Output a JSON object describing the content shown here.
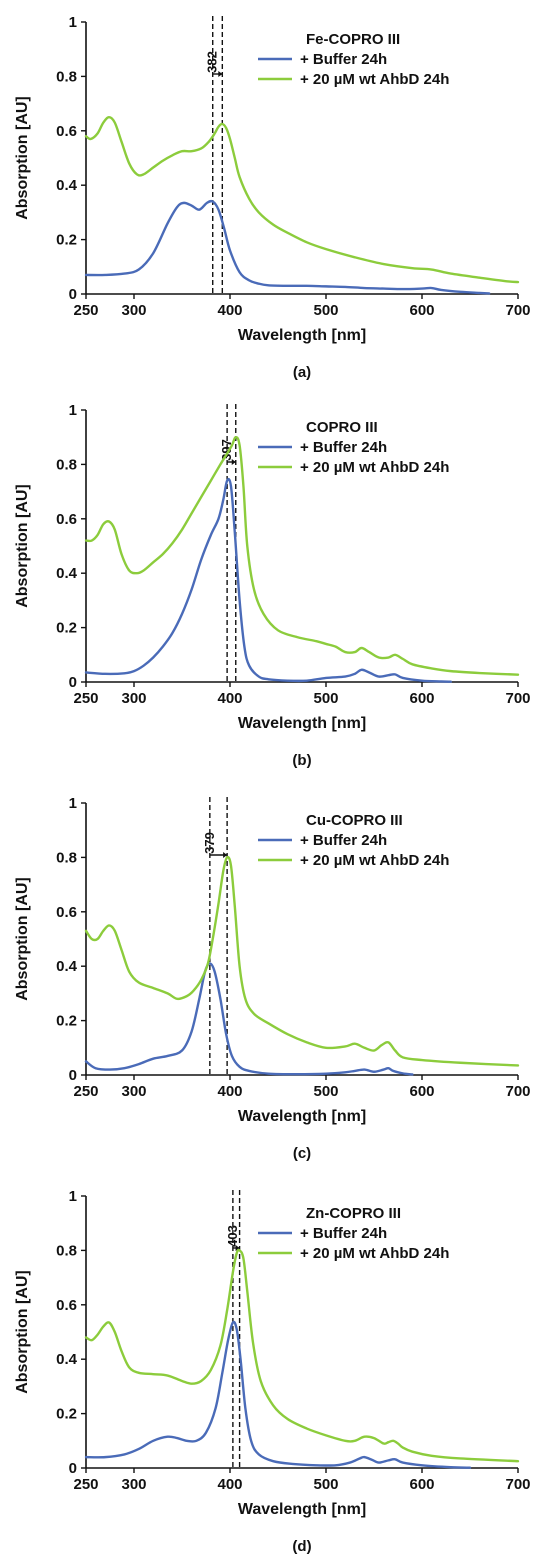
{
  "colors": {
    "buffer": "#4a6bb8",
    "ahbd": "#8ccc3c",
    "axis": "#111111",
    "marker": "#111111"
  },
  "chart_data": [
    {
      "type": "line",
      "panel_label": "(a)",
      "legend_title": "Fe-COPRO III",
      "xlabel": "Wavelength [nm]",
      "ylabel": "Absorption [AU]",
      "xlim": [
        250,
        700
      ],
      "ylim": [
        0,
        1
      ],
      "xticks": [
        "250",
        "300",
        "400",
        "500",
        "600",
        "700"
      ],
      "yticks": [
        "0",
        "0.2",
        "0.4",
        "0.6",
        "0.8",
        "1"
      ],
      "grid": false,
      "legend_position": "top-right",
      "peak_label": "382",
      "peak_lines": [
        382,
        392
      ],
      "series": [
        {
          "name": "+ Buffer 24h",
          "color": "#4a6bb8",
          "x": [
            250,
            270,
            290,
            305,
            320,
            335,
            345,
            352,
            360,
            368,
            376,
            382,
            388,
            394,
            400,
            410,
            420,
            430,
            440,
            460,
            480,
            500,
            520,
            540,
            560,
            580,
            600,
            610,
            620,
            640,
            660,
            670
          ],
          "y": [
            0.07,
            0.07,
            0.075,
            0.09,
            0.15,
            0.26,
            0.32,
            0.335,
            0.325,
            0.31,
            0.335,
            0.34,
            0.31,
            0.24,
            0.16,
            0.08,
            0.05,
            0.038,
            0.032,
            0.03,
            0.03,
            0.028,
            0.026,
            0.022,
            0.02,
            0.018,
            0.02,
            0.022,
            0.015,
            0.008,
            0.004,
            0.002
          ]
        },
        {
          "name": "+ 20 µM wt AhbD 24h",
          "color": "#8ccc3c",
          "x": [
            250,
            255,
            262,
            268,
            274,
            280,
            287,
            295,
            303,
            310,
            320,
            330,
            340,
            350,
            360,
            370,
            378,
            384,
            388,
            392,
            396,
            400,
            405,
            410,
            420,
            430,
            445,
            460,
            480,
            500,
            530,
            560,
            590,
            610,
            630,
            660,
            690,
            700
          ],
          "y": [
            0.58,
            0.57,
            0.59,
            0.63,
            0.65,
            0.63,
            0.56,
            0.48,
            0.44,
            0.44,
            0.465,
            0.49,
            0.51,
            0.525,
            0.525,
            0.535,
            0.56,
            0.59,
            0.615,
            0.625,
            0.61,
            0.57,
            0.5,
            0.43,
            0.35,
            0.3,
            0.255,
            0.225,
            0.19,
            0.165,
            0.135,
            0.11,
            0.095,
            0.09,
            0.075,
            0.06,
            0.046,
            0.044
          ]
        }
      ]
    },
    {
      "type": "line",
      "panel_label": "(b)",
      "legend_title": "COPRO III",
      "xlabel": "Wavelength [nm]",
      "ylabel": "Absorption [AU]",
      "xlim": [
        250,
        700
      ],
      "ylim": [
        0,
        1
      ],
      "xticks": [
        "250",
        "300",
        "400",
        "500",
        "600",
        "700"
      ],
      "yticks": [
        "0",
        "0.2",
        "0.4",
        "0.6",
        "0.8",
        "1"
      ],
      "grid": false,
      "legend_position": "top-right",
      "peak_label": "397",
      "peak_lines": [
        397,
        406
      ],
      "series": [
        {
          "name": "+ Buffer 24h",
          "color": "#4a6bb8",
          "x": [
            250,
            270,
            290,
            300,
            310,
            320,
            330,
            340,
            350,
            360,
            370,
            380,
            388,
            393,
            397,
            401,
            405,
            410,
            415,
            420,
            430,
            440,
            460,
            480,
            500,
            520,
            530,
            537,
            545,
            555,
            565,
            572,
            580,
            600,
            620,
            630
          ],
          "y": [
            0.035,
            0.03,
            0.032,
            0.04,
            0.06,
            0.09,
            0.13,
            0.18,
            0.25,
            0.34,
            0.45,
            0.54,
            0.6,
            0.67,
            0.74,
            0.72,
            0.55,
            0.3,
            0.13,
            0.06,
            0.02,
            0.01,
            0.005,
            0.005,
            0.015,
            0.02,
            0.03,
            0.045,
            0.035,
            0.02,
            0.025,
            0.028,
            0.015,
            0.005,
            0.002,
            0.001
          ]
        },
        {
          "name": "+ 20 µM wt AhbD 24h",
          "color": "#8ccc3c",
          "x": [
            250,
            256,
            262,
            268,
            274,
            280,
            287,
            295,
            303,
            310,
            320,
            330,
            340,
            350,
            360,
            370,
            380,
            390,
            397,
            402,
            406,
            410,
            414,
            418,
            425,
            435,
            450,
            470,
            490,
            500,
            510,
            520,
            530,
            537,
            545,
            555,
            565,
            572,
            580,
            590,
            610,
            630,
            660,
            700
          ],
          "y": [
            0.52,
            0.52,
            0.54,
            0.58,
            0.59,
            0.56,
            0.47,
            0.41,
            0.4,
            0.41,
            0.44,
            0.47,
            0.51,
            0.56,
            0.62,
            0.68,
            0.74,
            0.8,
            0.84,
            0.87,
            0.9,
            0.87,
            0.72,
            0.5,
            0.34,
            0.25,
            0.19,
            0.165,
            0.15,
            0.14,
            0.13,
            0.11,
            0.11,
            0.125,
            0.11,
            0.09,
            0.09,
            0.1,
            0.085,
            0.065,
            0.05,
            0.04,
            0.033,
            0.027
          ]
        }
      ]
    },
    {
      "type": "line",
      "panel_label": "(c)",
      "legend_title": "Cu-COPRO III",
      "xlabel": "Wavelength [nm]",
      "ylabel": "Absorption [AU]",
      "xlim": [
        250,
        700
      ],
      "ylim": [
        0,
        1
      ],
      "xticks": [
        "250",
        "300",
        "400",
        "500",
        "600",
        "700"
      ],
      "yticks": [
        "0",
        "0.2",
        "0.4",
        "0.6",
        "0.8",
        "1"
      ],
      "grid": false,
      "legend_position": "top-right",
      "peak_label": "379",
      "peak_lines": [
        379,
        397
      ],
      "series": [
        {
          "name": "+ Buffer 24h",
          "color": "#4a6bb8",
          "x": [
            250,
            260,
            275,
            290,
            305,
            320,
            335,
            350,
            360,
            368,
            374,
            379,
            384,
            390,
            396,
            402,
            410,
            420,
            440,
            470,
            500,
            520,
            530,
            540,
            550,
            560,
            565,
            570,
            580,
            590
          ],
          "y": [
            0.05,
            0.025,
            0.02,
            0.025,
            0.04,
            0.06,
            0.07,
            0.09,
            0.16,
            0.28,
            0.38,
            0.41,
            0.38,
            0.28,
            0.15,
            0.07,
            0.03,
            0.015,
            0.005,
            0.003,
            0.005,
            0.01,
            0.015,
            0.02,
            0.012,
            0.02,
            0.025,
            0.015,
            0.006,
            0.002
          ]
        },
        {
          "name": "+ 20 µM wt AhbD 24h",
          "color": "#8ccc3c",
          "x": [
            250,
            256,
            262,
            268,
            274,
            280,
            287,
            295,
            305,
            320,
            335,
            345,
            355,
            362,
            370,
            377,
            382,
            388,
            393,
            397,
            401,
            405,
            410,
            416,
            425,
            440,
            460,
            480,
            500,
            520,
            530,
            540,
            550,
            558,
            565,
            572,
            580,
            600,
            640,
            700
          ],
          "y": [
            0.53,
            0.5,
            0.5,
            0.53,
            0.55,
            0.53,
            0.46,
            0.38,
            0.34,
            0.32,
            0.3,
            0.28,
            0.29,
            0.31,
            0.35,
            0.41,
            0.5,
            0.63,
            0.75,
            0.8,
            0.77,
            0.62,
            0.4,
            0.28,
            0.225,
            0.19,
            0.15,
            0.12,
            0.1,
            0.105,
            0.115,
            0.1,
            0.09,
            0.11,
            0.12,
            0.09,
            0.065,
            0.055,
            0.045,
            0.035
          ]
        }
      ]
    },
    {
      "type": "line",
      "panel_label": "(d)",
      "legend_title": "Zn-COPRO III",
      "xlabel": "Wavelength [nm]",
      "ylabel": "Absorption [AU]",
      "xlim": [
        250,
        700
      ],
      "ylim": [
        0,
        1
      ],
      "xticks": [
        "250",
        "300",
        "400",
        "500",
        "600",
        "700"
      ],
      "yticks": [
        "0",
        "0.2",
        "0.4",
        "0.6",
        "0.8",
        "1"
      ],
      "grid": false,
      "legend_position": "top-right",
      "peak_label": "403",
      "peak_lines": [
        403,
        410
      ],
      "series": [
        {
          "name": "+ Buffer 24h",
          "color": "#4a6bb8",
          "x": [
            250,
            270,
            290,
            305,
            320,
            335,
            345,
            355,
            365,
            375,
            385,
            392,
            398,
            403,
            407,
            411,
            416,
            422,
            430,
            445,
            465,
            490,
            510,
            525,
            535,
            540,
            548,
            555,
            565,
            572,
            580,
            600,
            630,
            650
          ],
          "y": [
            0.04,
            0.04,
            0.05,
            0.07,
            0.1,
            0.115,
            0.11,
            0.1,
            0.1,
            0.13,
            0.22,
            0.35,
            0.47,
            0.535,
            0.51,
            0.4,
            0.22,
            0.1,
            0.05,
            0.025,
            0.015,
            0.01,
            0.01,
            0.02,
            0.035,
            0.04,
            0.03,
            0.02,
            0.028,
            0.032,
            0.02,
            0.01,
            0.003,
            0.001
          ]
        },
        {
          "name": "+ 20 µM wt AhbD 24h",
          "color": "#8ccc3c",
          "x": [
            250,
            256,
            262,
            268,
            274,
            280,
            287,
            295,
            305,
            320,
            335,
            350,
            360,
            370,
            380,
            390,
            397,
            403,
            407,
            410,
            414,
            418,
            424,
            432,
            445,
            460,
            480,
            500,
            520,
            530,
            540,
            550,
            560,
            565,
            570,
            575,
            580,
            590,
            610,
            640,
            700
          ],
          "y": [
            0.48,
            0.47,
            0.49,
            0.52,
            0.535,
            0.5,
            0.43,
            0.37,
            0.35,
            0.345,
            0.34,
            0.32,
            0.31,
            0.32,
            0.36,
            0.45,
            0.58,
            0.72,
            0.79,
            0.8,
            0.77,
            0.65,
            0.46,
            0.32,
            0.23,
            0.18,
            0.145,
            0.12,
            0.1,
            0.1,
            0.115,
            0.11,
            0.09,
            0.095,
            0.1,
            0.09,
            0.075,
            0.06,
            0.045,
            0.035,
            0.025
          ]
        }
      ]
    }
  ]
}
